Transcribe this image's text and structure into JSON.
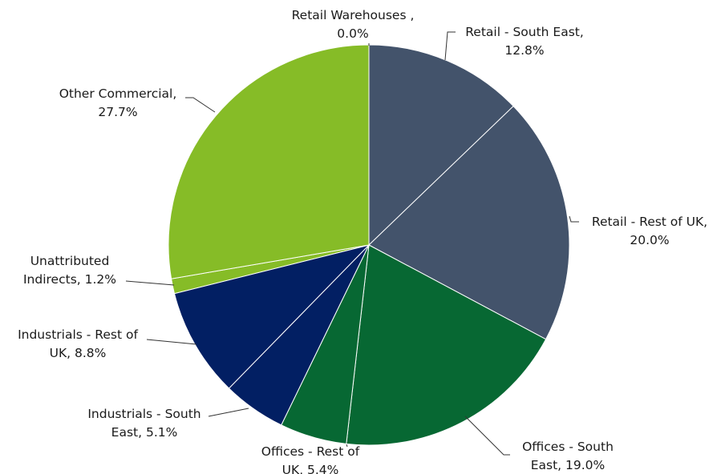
{
  "chart_data": {
    "type": "pie",
    "title": "",
    "start": "12 o'clock",
    "direction": "clockwise",
    "slices": [
      {
        "name": "Retail Warehouses ,",
        "value": 0.0,
        "value_label": "0.0%",
        "color": "#43536b"
      },
      {
        "name": "Retail - South East,",
        "value": 12.8,
        "value_label": "12.8%",
        "color": "#43536b"
      },
      {
        "name": "Retail - Rest of UK,",
        "value": 20.0,
        "value_label": "20.0%",
        "color": "#43536b"
      },
      {
        "name": "Offices - South East,",
        "value": 19.0,
        "value_label": "19.0%",
        "color": "#076833"
      },
      {
        "name": "Offices - Rest of UK,",
        "value": 5.4,
        "value_label": "5.4%",
        "color": "#076833"
      },
      {
        "name": "Industrials - South East,",
        "value": 5.1,
        "value_label": "5.1%",
        "color": "#021f63"
      },
      {
        "name": "Industrials - Rest of UK,",
        "value": 8.8,
        "value_label": "8.8%",
        "color": "#021f63"
      },
      {
        "name": "Unattributed Indirects,",
        "value": 1.2,
        "value_label": "1.2%",
        "color": "#86bc27"
      },
      {
        "name": "Other Commercial,",
        "value": 27.7,
        "value_label": "27.7%",
        "color": "#86bc27"
      }
    ],
    "labels": [
      {
        "line1": "Retail Warehouses ,",
        "line2": "0.0%"
      },
      {
        "line1": "Retail - South East,",
        "line2": "12.8%"
      },
      {
        "line1": "Retail - Rest of UK,",
        "line2": "20.0%"
      },
      {
        "line1": "Offices - South",
        "line2": "East, 19.0%"
      },
      {
        "line1": "Offices - Rest of",
        "line2": "UK, 5.4%"
      },
      {
        "line1": "Industrials - South",
        "line2": "East, 5.1%"
      },
      {
        "line1": "Industrials - Rest of",
        "line2": "UK, 8.8%"
      },
      {
        "line1": "Unattributed",
        "line2": "Indirects, 1.2%"
      },
      {
        "line1": "Other Commercial,",
        "line2": "27.7%"
      }
    ]
  }
}
